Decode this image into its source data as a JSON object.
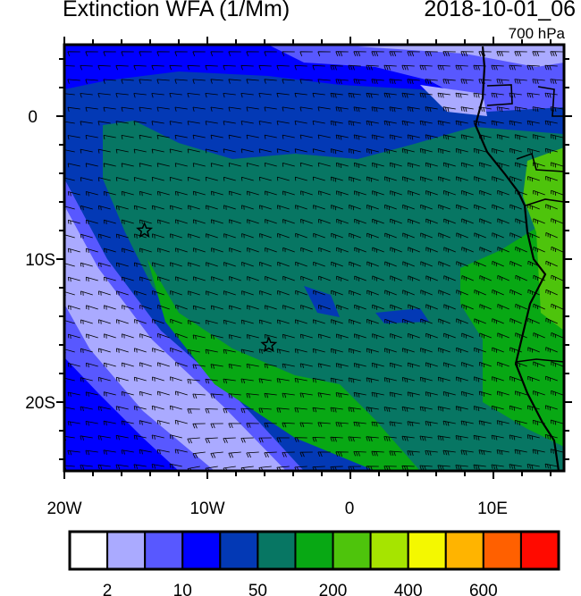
{
  "header": {
    "title": "Extinction WFA (1/Mm)",
    "datetime": "2018-10-01_06",
    "level": "700 hPa"
  },
  "map": {
    "region": "Southeast Atlantic / southwest Africa",
    "lon_range": [
      -20,
      15
    ],
    "lat_range": [
      -25,
      5
    ],
    "x_tick_labels": [
      "20W",
      "10W",
      "0",
      "10E"
    ],
    "y_tick_labels": [
      "0",
      "10S",
      "20S"
    ],
    "overlay": "wind-barbs",
    "markers": [
      {
        "type": "star-icon",
        "lon": -14.4,
        "lat": -8.0
      },
      {
        "type": "star-icon",
        "lon": -5.7,
        "lat": -16.0
      }
    ]
  },
  "colorbar": {
    "colors": [
      "#ffffff",
      "#aaaaff",
      "#5858ff",
      "#0000ff",
      "#0339b5",
      "#077663",
      "#08a814",
      "#4ec40c",
      "#a6e400",
      "#f4f800",
      "#ffb400",
      "#ff6000",
      "#ff0a00"
    ],
    "labels": [
      "2",
      "10",
      "50",
      "200",
      "400",
      "600"
    ]
  }
}
